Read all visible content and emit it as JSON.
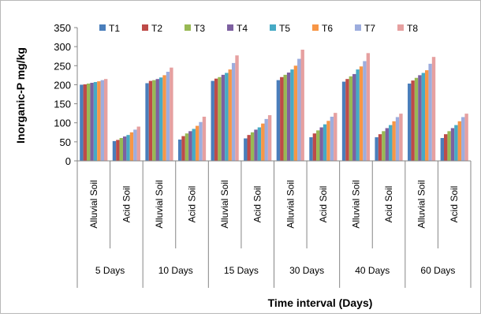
{
  "chart_data": {
    "type": "bar",
    "ylabel": "Inorganic-P mg/kg",
    "xlabel": "Time interval (Days)",
    "ylim": [
      0,
      350
    ],
    "yticks": [
      0,
      50,
      100,
      150,
      200,
      250,
      300,
      350
    ],
    "grid": false,
    "legend_position": "top",
    "groups": [
      "5 Days",
      "10 Days",
      "15 Days",
      "30 Days",
      "40 Days",
      "60 Days"
    ],
    "subcategories": [
      "Alluvial Soil",
      "Acid Soil"
    ],
    "categories": [
      "Alluvial Soil",
      "Acid Soil",
      "Alluvial Soil",
      "Acid Soil",
      "Alluvial Soil",
      "Acid Soil",
      "Alluvial Soil",
      "Acid Soil",
      "Alluvial Soil",
      "Acid Soil",
      "Alluvial Soil",
      "Acid Soil"
    ],
    "series": [
      {
        "name": "T1",
        "color": "#4a7ebb",
        "values": [
          200,
          52,
          204,
          56,
          210,
          59,
          212,
          62,
          208,
          62,
          203,
          60
        ]
      },
      {
        "name": "T2",
        "color": "#be4b48",
        "values": [
          201,
          55,
          210,
          65,
          216,
          68,
          220,
          72,
          215,
          70,
          211,
          70
        ]
      },
      {
        "name": "T3",
        "color": "#98b954",
        "values": [
          203,
          60,
          212,
          72,
          220,
          75,
          226,
          80,
          222,
          78,
          218,
          78
        ]
      },
      {
        "name": "T4",
        "color": "#7d60a0",
        "values": [
          205,
          64,
          215,
          78,
          226,
          82,
          232,
          88,
          228,
          86,
          225,
          86
        ]
      },
      {
        "name": "T5",
        "color": "#46aac5",
        "values": [
          207,
          68,
          219,
          84,
          231,
          88,
          240,
          96,
          240,
          94,
          231,
          94
        ]
      },
      {
        "name": "T6",
        "color": "#f79646",
        "values": [
          209,
          75,
          225,
          92,
          240,
          98,
          250,
          105,
          248,
          104,
          238,
          104
        ]
      },
      {
        "name": "T7",
        "color": "#9dadde",
        "values": [
          212,
          82,
          234,
          102,
          257,
          110,
          268,
          116,
          262,
          115,
          255,
          115
        ]
      },
      {
        "name": "T8",
        "color": "#e6a0a0",
        "values": [
          215,
          90,
          245,
          116,
          277,
          120,
          292,
          126,
          283,
          124,
          273,
          124
        ]
      }
    ]
  }
}
